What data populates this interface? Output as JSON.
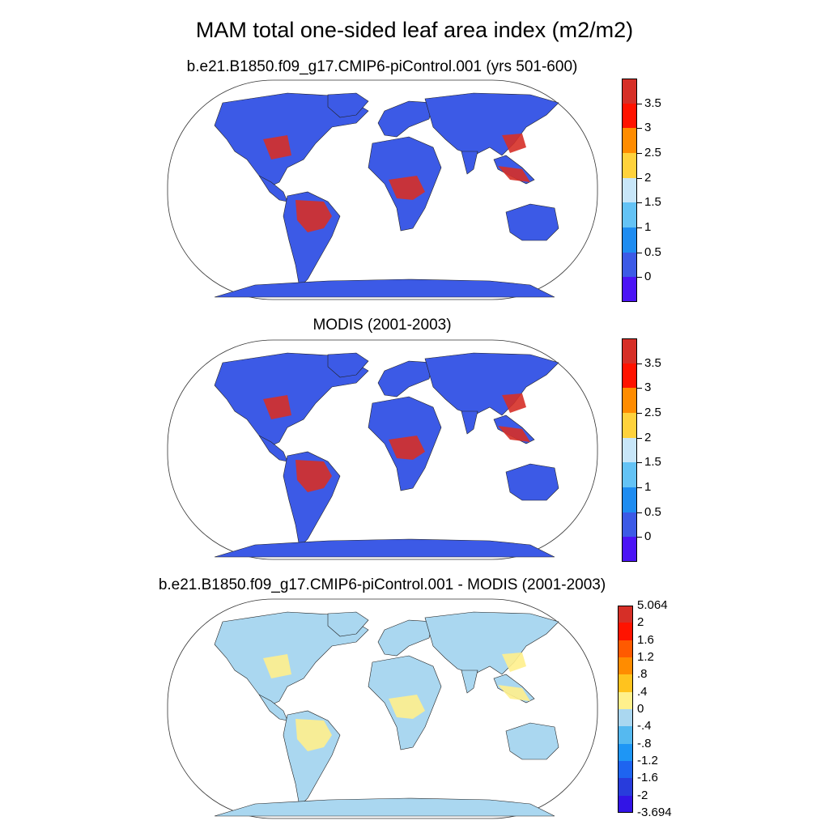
{
  "title": "MAM total one-sided leaf area index (m2/m2)",
  "panels": [
    {
      "title": "b.e21.B1850.f09_g17.CMIP6-piControl.001 (yrs 501-600)",
      "colorbar": {
        "labels": [
          "3.5",
          "3",
          "2.5",
          "2",
          "1.5",
          "1",
          "0.5",
          "0"
        ],
        "colors": [
          "#d62f27",
          "#ff1300",
          "#ff8c00",
          "#ffd23c",
          "#c8e6f8",
          "#64c3f5",
          "#1e8cf0",
          "#3c5ae6",
          "#4b14f5"
        ]
      },
      "land_color": "#3c5ae6",
      "tropical_color": "#d62f27"
    },
    {
      "title": "MODIS (2001-2003)",
      "colorbar": {
        "labels": [
          "3.5",
          "3",
          "2.5",
          "2",
          "1.5",
          "1",
          "0.5",
          "0"
        ],
        "colors": [
          "#d62f27",
          "#ff1300",
          "#ff8c00",
          "#ffd23c",
          "#c8e6f8",
          "#64c3f5",
          "#1e8cf0",
          "#3c5ae6",
          "#4b14f5"
        ]
      },
      "land_color": "#3c5ae6",
      "tropical_color": "#d62f27"
    },
    {
      "title": "b.e21.B1850.f09_g17.CMIP6-piControl.001 - MODIS (2001-2003)",
      "colorbar": {
        "labels": [
          "5.064",
          "2",
          "1.6",
          "1.2",
          ".8",
          ".4",
          "0",
          "-.4",
          "-.8",
          "-1.2",
          "-1.6",
          "-2",
          "-3.694"
        ],
        "colors": [
          "#d62f27",
          "#ff1300",
          "#ff5a00",
          "#ff8c00",
          "#ffc31e",
          "#fff08c",
          "#aad7f0",
          "#55b9f0",
          "#1e96f5",
          "#1e64f0",
          "#283cdc",
          "#3214e6"
        ]
      },
      "land_color": "#aad7f0",
      "tropical_color": "#fff08c"
    }
  ]
}
